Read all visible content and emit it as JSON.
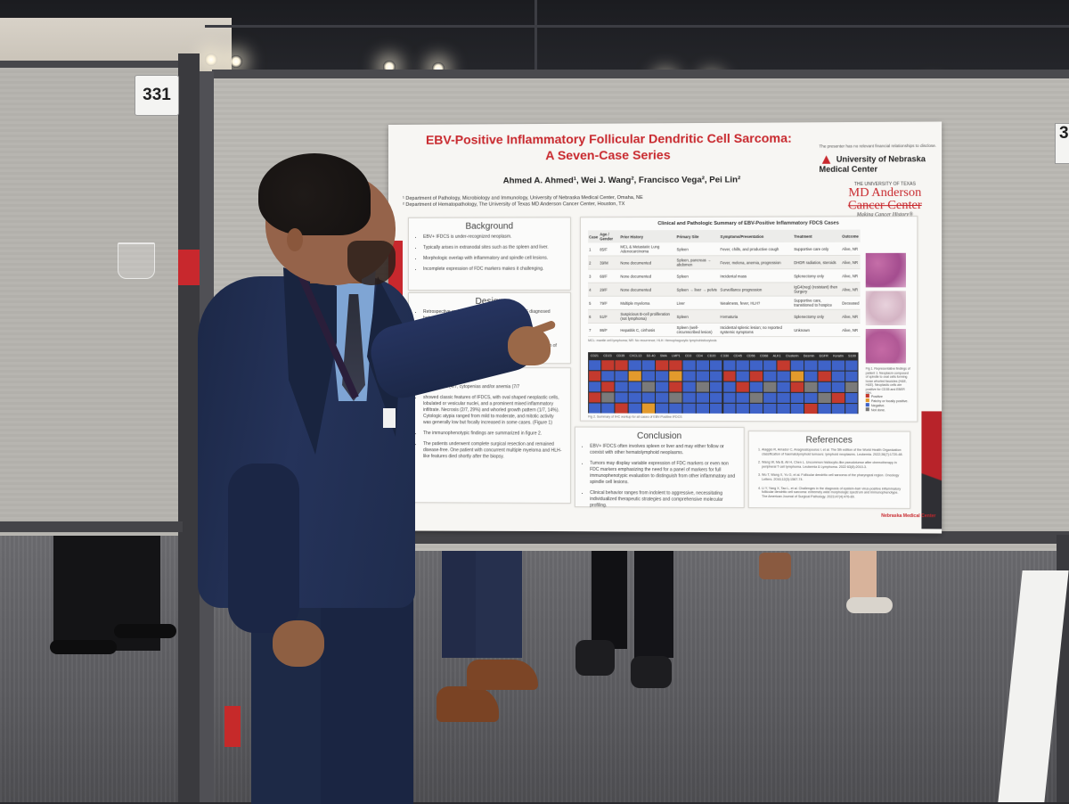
{
  "scene": {
    "booth_number_left": "331",
    "booth_number_right": "3"
  },
  "poster": {
    "title_line1": "EBV-Positive Inflammatory Follicular Dendritic Cell Sarcoma:",
    "title_line2": "A Seven-Case Series",
    "authors": "Ahmed A. Ahmed¹, Wei J. Wang², Francisco Vega², Pei Lin²",
    "affiliation1": "¹ Department of Pathology, Microbiology and Immunology, University of Nebraska Medical Center, Omaha, NE",
    "affiliation2": "² Department of Hematopathology, The University of Texas MD Anderson Cancer Center, Houston, TX",
    "disclosure": "The presenter has no relevant financial relationships to disclose.",
    "logo_unmc": "University of Nebraska Medical Center",
    "logo_md_top": "THE UNIVERSITY OF TEXAS",
    "logo_md_name1": "MD Anderson",
    "logo_md_name2": "Cancer Center",
    "logo_md_tagline": "Making Cancer History®",
    "logo_footer": "Nebraska Medical Center",
    "background": {
      "heading": "Background",
      "items": [
        "EBV+ IFDCS is under-recognized neoplasm.",
        "Typically arises in extranodal sites such as the spleen and liver.",
        "Morphologic overlap with inflammatory and spindle cell lesions.",
        "Incomplete expression of FDC markers makes it challenging."
      ]
    },
    "design": {
      "heading": "Design",
      "items": [
        "Retrospective review of seven cases of EBV+ IFDCS diagnosed between 2012 and 2025.",
        "Clinical presentation, histopathology, immunophenotype and outcomes.",
        "Diagnosis established based on morphology, variable expression of FDC markers and EBV positivity."
      ]
    },
    "results": {
      "items": [
        "years).",
        "part or mass (4/7, cytopenias and/or anemia (7/7",
        "showed classic features of IFDCS, with oval shaped neoplastic cells, lobulated or vesicular nuclei, and a prominent mixed inflammatory infiltrate. Necrosis (2/7, 29%) and whorled growth pattern (1/7, 14%). Cytologic atypia ranged from mild to moderate, and mitotic activity was generally low but focally increased in some cases. (Figure 1)",
        "The immunophenotypic findings are summarized in figure 2.",
        "The patients underwent complete surgical resection and remained disease-free. One patient with concurrent multiple myeloma and HLH-like features died shortly after the biopsy."
      ]
    },
    "table": {
      "title": "Clinical and Pathologic Summary of EBV-Positive Inflammatory FDCS Cases",
      "headers": [
        "Case",
        "Age / Gender",
        "Prior History",
        "Primary Site",
        "Symptoms/Presentation",
        "Treatment",
        "Outcome"
      ],
      "rows": [
        [
          "1",
          "85/F",
          "MCL & Metastatic Lung Adenocarcinoma",
          "Spleen",
          "Fever, chills, and productive cough",
          "Supportive care only",
          "Alive, NR"
        ],
        [
          "2",
          "39/M",
          "None documented",
          "Spleen, pancreas → abdomen",
          "Fever, melena, anemia, progression",
          "DHDR radiation, steroids",
          "Alive, NR"
        ],
        [
          "3",
          "68/F",
          "None documented",
          "Spleen",
          "Incidental mass",
          "Splenectomy only",
          "Alive, NR"
        ],
        [
          "4",
          "29/F",
          "None documented",
          "Spleen → liver → pelvis",
          "Surveillance progression",
          "IgG4(neg) (resistant) then Surgery",
          "Alive, NR"
        ],
        [
          "5",
          "79/F",
          "Multiple myeloma",
          "Liver",
          "Weakness, fever, HLH?",
          "Supportive care, transitioned to hospice",
          "Deceased"
        ],
        [
          "6",
          "51/F",
          "Suspicious B-cell proliferation (not lymphoma)",
          "Spleen",
          "Hematuria",
          "Splenectomy only",
          "Alive, NR"
        ],
        [
          "7",
          "86/F",
          "Hepatitis C, cirrhosis",
          "Spleen (well-circumscribed lesion)",
          "Incidental splenic lesion; no reported systemic symptoms",
          "Unknown",
          "Alive, NR"
        ]
      ],
      "footnote": "MCL: mantle cell lymphoma; NR: No recurrence; HLH: Hemophagocytic lymphohistiocytosis"
    },
    "heatmap": {
      "markers": [
        "CD21",
        "CD23",
        "CD35",
        "CXCL13",
        "D2-40",
        "SMA",
        "LMP1",
        "CD3",
        "CD4",
        "CD20",
        "CD30",
        "CD45",
        "CD56",
        "CD68",
        "ALK1",
        "Clusterin",
        "Desmin",
        "EGFR",
        "Keratin",
        "S100"
      ],
      "caption": "Fig 2. Summary of IHC workup for all cases of EBV-Positive IFDCS",
      "legend": [
        "Positive",
        "Patchy or focally positive.",
        "Negative.",
        "Not done."
      ],
      "legend_colors": [
        "#c43a2e",
        "#e39a2c",
        "#3f63c8",
        "#7a7a7a"
      ],
      "grid": [
        [
          2,
          0,
          0,
          2,
          2,
          0,
          0,
          2,
          2,
          2,
          2,
          2,
          2,
          2,
          0,
          2,
          2,
          2,
          2,
          2
        ],
        [
          0,
          2,
          2,
          1,
          2,
          2,
          1,
          2,
          2,
          2,
          0,
          2,
          0,
          2,
          2,
          1,
          2,
          0,
          2,
          2
        ],
        [
          2,
          0,
          2,
          2,
          3,
          2,
          0,
          2,
          3,
          2,
          2,
          0,
          2,
          3,
          2,
          0,
          3,
          2,
          2,
          3
        ],
        [
          0,
          3,
          2,
          2,
          2,
          2,
          3,
          2,
          2,
          2,
          2,
          2,
          3,
          2,
          2,
          2,
          2,
          3,
          0,
          2
        ],
        [
          2,
          2,
          0,
          2,
          1,
          2,
          2,
          2,
          2,
          2,
          2,
          2,
          2,
          2,
          2,
          2,
          0,
          2,
          2,
          2
        ]
      ]
    },
    "figure1_caption": "Fig 1. Representative findings of patient 1: Neoplasm composed of spindle to oval cells forming loose whorled fascicles (H&E, H&E). Neoplastic cells are positive for CD35 and EBER ISH.",
    "conclusion": {
      "heading": "Conclusion",
      "items": [
        "EBV+ IFDCS often involves spleen or liver and may either follow or coexist with other hematolymphoid neoplasms.",
        "Tumors may display variable expression of FDC markers or even non FDC markers emphasizing the need for a panel of markers for full immunophenotypic evaluation to distinguish from other inflammatory and spindle cell lesions.",
        "Clinical behavior ranges from indolent to aggressive, necessitating individualized therapeutic strategies and comprehensive molecular profiling."
      ]
    },
    "references": {
      "heading": "References",
      "items": [
        "Alaggio R, Amador C, Anagnostopoulos I, et al. The 5th edition of the World Health Organization classification of haematolymphoid tumours: lymphoid neoplasms. Leukemia. 2022;36(7):1720-48.",
        "Wang W, Ma B, Ali H, Chen L. Uncommon histiocytic-like pseudotumor after chemotherapy in peripheral T-cell lymphoma. Leukemia & Lymphoma. 2022 63(8):2010-3.",
        "Wu T, Wang X, Yu G, et al. Follicular dendritic cell sarcoma of the pharyngeal region. Oncology Letters. 2016;12(3):1567-74.",
        "Li Y, Yang X, Tao L, et al. Challenges in the diagnosis of epstein-barr virus-positive inflammatory follicular dendritic cell sarcoma: extremely wide morphologic spectrum and immunophenotype. The American Journal of Surgical Pathology. 2023;47(4):476-89."
      ]
    }
  },
  "colors": {
    "poster_red": "#c8282d",
    "suit_navy": "#1f2c4a",
    "panel_gray": "#b8b6b1",
    "carpet": "#5e5e62"
  }
}
